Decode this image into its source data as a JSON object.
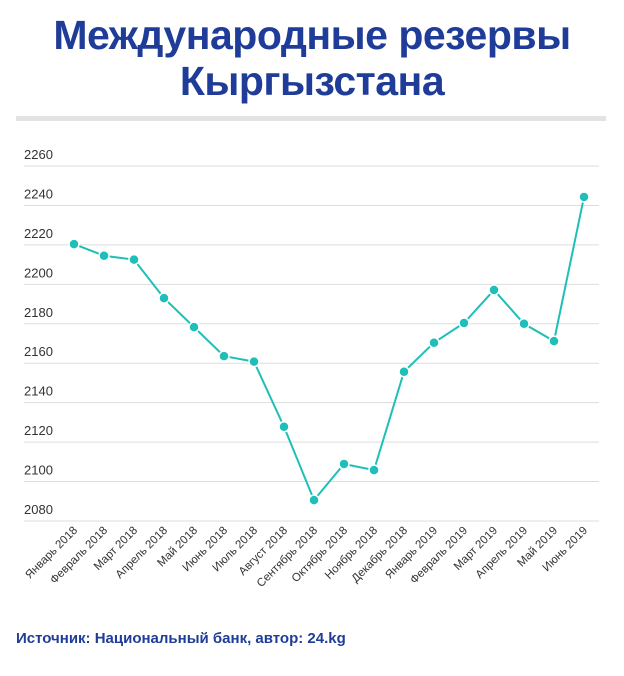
{
  "title_line1": "Международные резервы",
  "title_line2": "Кыргызстана",
  "source": "Источник: Национальный банк, автор: 24.kg",
  "colors": {
    "line": "#1ebfb8",
    "title": "#1f3c98",
    "grid": "#dddddd"
  },
  "chart_data": {
    "type": "line",
    "title": "Международные резервы Кыргызстана",
    "xlabel": "",
    "ylabel": "",
    "ylim": [
      2080,
      2260
    ],
    "yticks": [
      2080,
      2100,
      2120,
      2140,
      2160,
      2180,
      2200,
      2220,
      2240,
      2260
    ],
    "grid": true,
    "categories": [
      "Январь 2018",
      "Февраль 2018",
      "Март 2018",
      "Апрель 2018",
      "Май 2018",
      "Июнь 2018",
      "Июль 2018",
      "Август 2018",
      "Сентябрь 2018",
      "Октябрь 2018",
      "Ноябрь 2018",
      "Декабрь 2018",
      "Январь 2019",
      "Февраль 2019",
      "Март 2019",
      "Апрель 2019",
      "Май 2019",
      "Июнь 2019"
    ],
    "values": [
      2220.4,
      2214.5,
      2212.5,
      2193,
      2178.3,
      2163.6,
      2160.8,
      2127.8,
      2090.6,
      2108.9,
      2105.8,
      2155.7,
      2170.4,
      2180.4,
      2197.1,
      2180,
      2171.2,
      2244.3
    ]
  }
}
